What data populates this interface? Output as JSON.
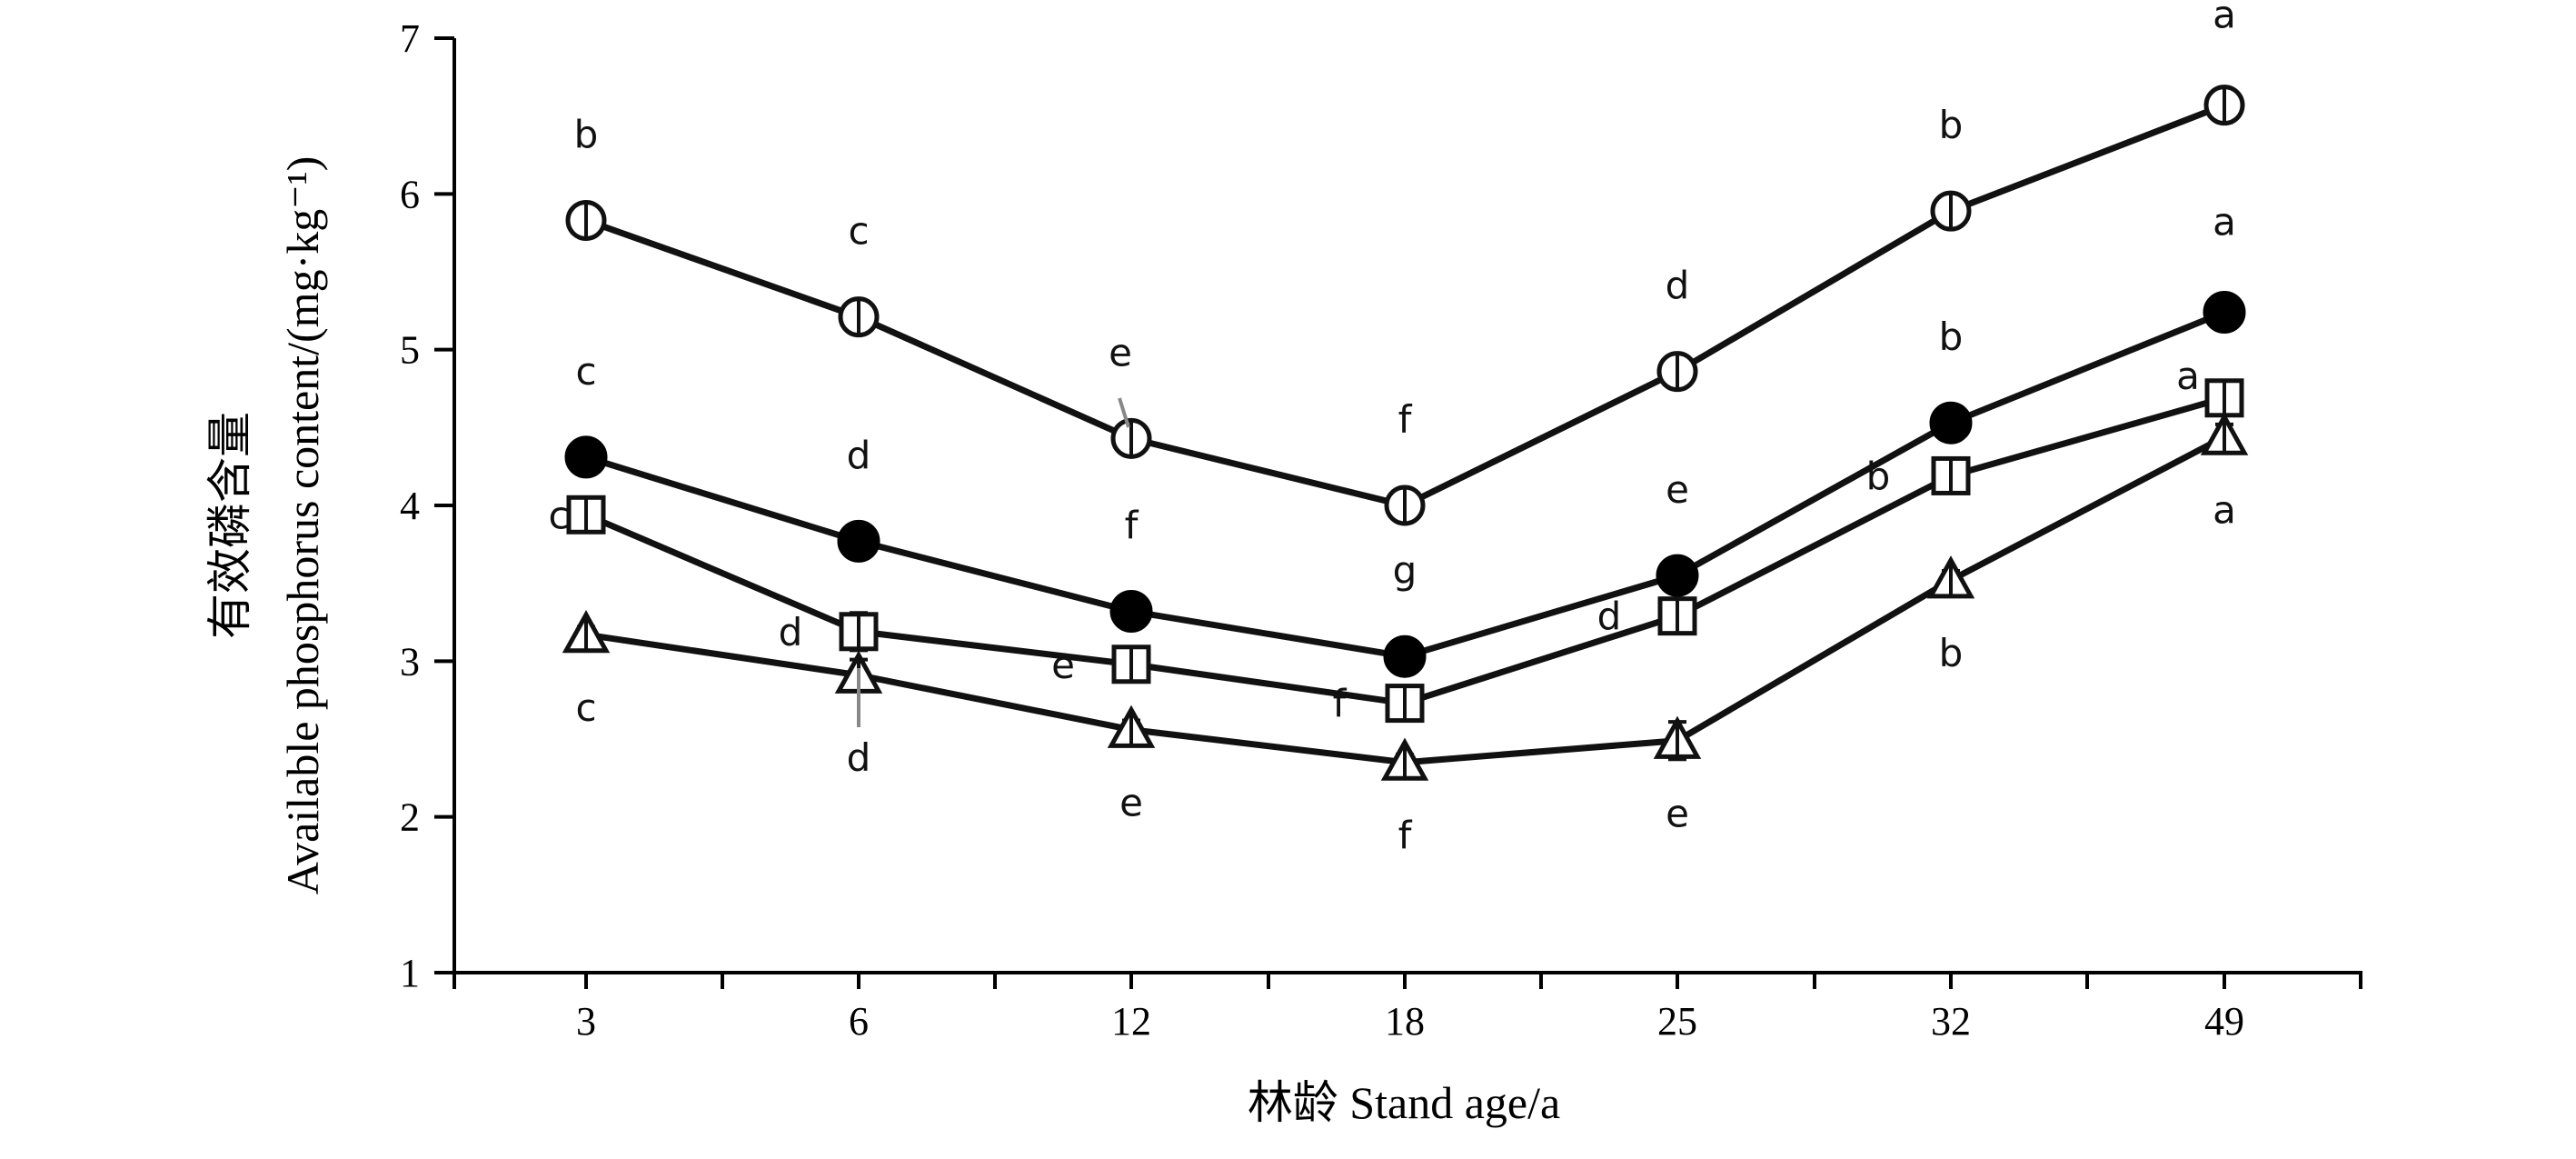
{
  "chart_data": {
    "type": "line",
    "categories": [
      "3",
      "6",
      "12",
      "18",
      "25",
      "32",
      "49"
    ],
    "xlabel": "林龄  Stand age/a",
    "ylabel_cn": "有效磷含量",
    "ylabel": "Available phosphorus content/(mg·kg⁻¹)",
    "ylim": [
      1,
      7
    ],
    "yticks": [
      1,
      2,
      3,
      4,
      5,
      6,
      7
    ],
    "grid": false,
    "series": [
      {
        "marker": "open-circle",
        "values": [
          5.83,
          5.21,
          4.43,
          4.0,
          4.86,
          5.89,
          6.57
        ],
        "errors": [
          0.08,
          0.06,
          0.07,
          0.06,
          0.1,
          0.07,
          0.07
        ],
        "letters": [
          "b",
          "c",
          "e",
          "f",
          "d",
          "b",
          "a"
        ]
      },
      {
        "marker": "filled-circle",
        "values": [
          4.31,
          3.77,
          3.32,
          3.03,
          3.55,
          4.53,
          5.24
        ],
        "errors": [
          0.06,
          0.06,
          0.06,
          0.05,
          0.08,
          0.06,
          0.06
        ],
        "letters": [
          "c",
          "d",
          "f",
          "g",
          "e",
          "b",
          "a"
        ]
      },
      {
        "marker": "open-square",
        "values": [
          3.94,
          3.19,
          2.98,
          2.73,
          3.29,
          4.19,
          4.69
        ],
        "errors": [
          0.08,
          0.12,
          0.07,
          0.06,
          0.07,
          0.07,
          0.08
        ],
        "letters": [
          "c",
          "d",
          "e",
          "f",
          "d",
          "b",
          "a"
        ]
      },
      {
        "marker": "open-triangle",
        "values": [
          3.17,
          2.91,
          2.56,
          2.35,
          2.49,
          3.52,
          4.44
        ],
        "errors": [
          0.05,
          0.1,
          0.06,
          0.05,
          0.12,
          0.06,
          0.08
        ],
        "letters": [
          "c",
          "d",
          "e",
          "f",
          "e",
          "b",
          "a"
        ]
      }
    ]
  }
}
